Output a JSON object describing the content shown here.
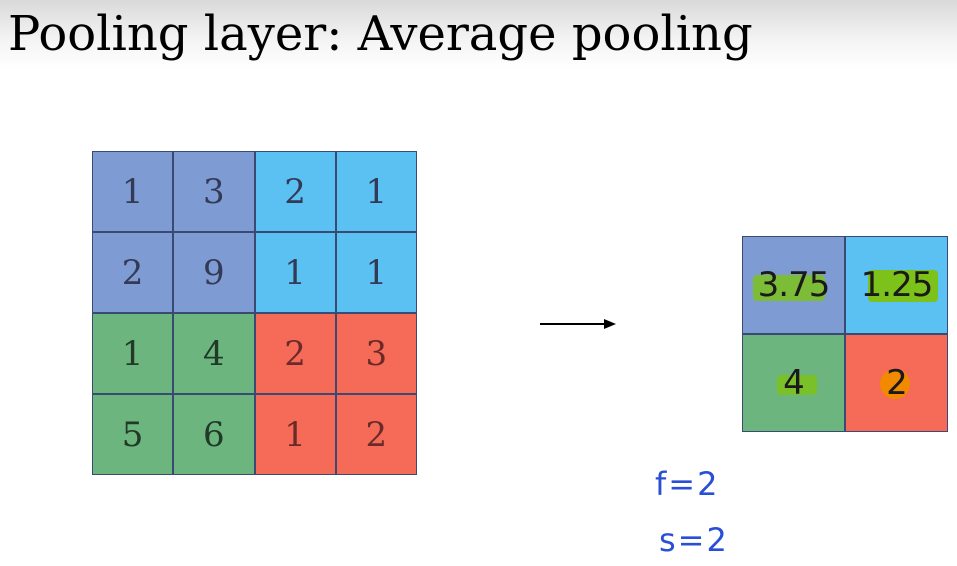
{
  "title": "Pooling layer: Average pooling",
  "colors": {
    "blue": "#7f9bd4",
    "cyan": "#5bc0f2",
    "green": "#6db57f",
    "red": "#f56b57",
    "highlight_green": "#7cc21a",
    "highlight_orange": "#f28a00",
    "note_blue": "#2a4fd6"
  },
  "input_matrix": [
    [
      1,
      3,
      2,
      1
    ],
    [
      2,
      9,
      1,
      1
    ],
    [
      1,
      4,
      2,
      3
    ],
    [
      5,
      6,
      1,
      2
    ]
  ],
  "output_matrix": [
    [
      "3.75",
      "1.25"
    ],
    [
      "4",
      "2"
    ]
  ],
  "arrow_icon": "right-arrow-icon",
  "notes": {
    "filter": "f=2",
    "stride": "s=2"
  }
}
